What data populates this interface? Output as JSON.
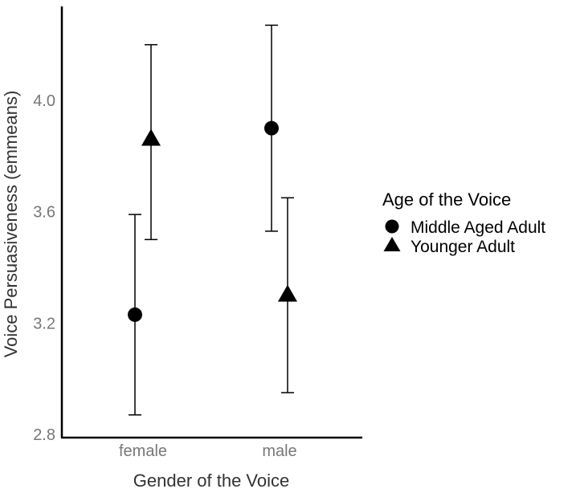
{
  "chart_data": {
    "type": "scatter",
    "xlabel": "Gender of the Voice",
    "ylabel": "Voice Persuasiveness (emmeans)",
    "categories": [
      "female",
      "male"
    ],
    "y_ticks": [
      "2.8",
      "3.2",
      "3.6",
      "4.0"
    ],
    "ylim": [
      2.8,
      4.28
    ],
    "grid": false,
    "legend": {
      "title": "Age of the Voice",
      "position": "right"
    },
    "series": [
      {
        "name": "Middle Aged Adult",
        "marker": "circle",
        "points": [
          {
            "x": "female",
            "y": 3.23,
            "lower": 2.87,
            "upper": 3.59
          },
          {
            "x": "male",
            "y": 3.9,
            "lower": 3.53,
            "upper": 4.27
          }
        ]
      },
      {
        "name": "Younger Adult",
        "marker": "triangle",
        "points": [
          {
            "x": "female",
            "y": 3.86,
            "lower": 3.5,
            "upper": 4.2
          },
          {
            "x": "male",
            "y": 3.3,
            "lower": 2.95,
            "upper": 3.65
          }
        ]
      }
    ],
    "colors": {
      "marker": "#000000",
      "axis": "#000000",
      "tick_text": "#777777"
    }
  }
}
